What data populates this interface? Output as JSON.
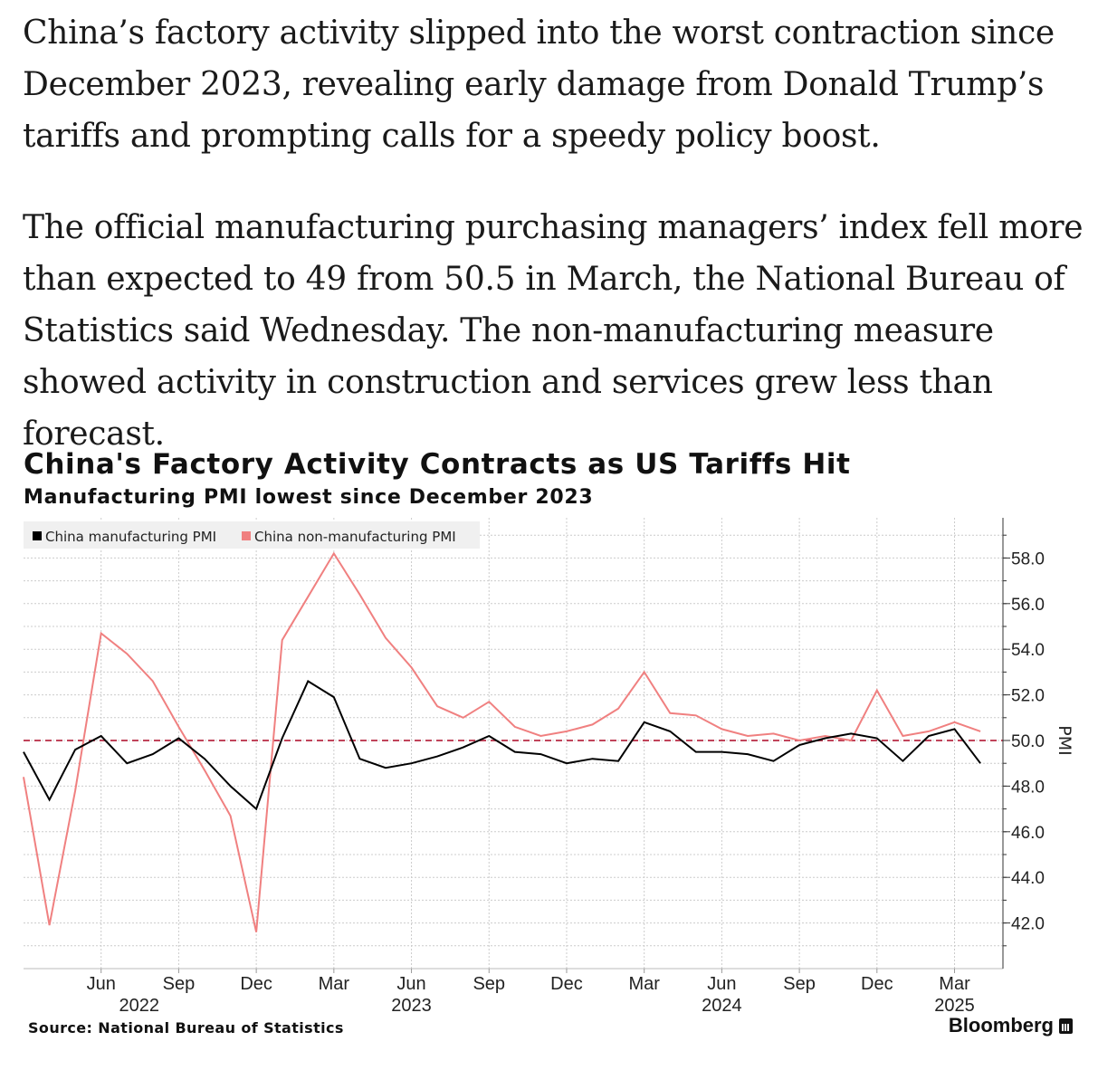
{
  "article": {
    "paragraphs": [
      "China’s factory activity slipped into the worst contraction since December 2023, revealing early damage from Donald Trump’s tariffs and prompting calls for a speedy policy boost.",
      "The official manufacturing purchasing managers’ index fell more than expected to 49 from 50.5 in March, the National Bureau of Statistics said Wednesday. The non-manufacturing measure showed activity in construction and services grew less than forecast."
    ]
  },
  "chart_data": {
    "type": "line",
    "title": "China's Factory Activity Contracts as US Tariffs Hit",
    "subtitle": "Manufacturing PMI lowest since December 2023",
    "ylabel": "PMI",
    "ylim": [
      40.0,
      59.6
    ],
    "yticks": [
      "58.0",
      "56.0",
      "54.0",
      "52.0",
      "50.0",
      "48.0",
      "46.0",
      "44.0",
      "42.0"
    ],
    "ytick_values": [
      58,
      56,
      54,
      52,
      50,
      48,
      46,
      44,
      42
    ],
    "reference_line": 50.0,
    "grid": true,
    "legend_position": "top-left",
    "x_start": "2022-03",
    "x": [
      "2022-03",
      "2022-04",
      "2022-05",
      "2022-06",
      "2022-07",
      "2022-08",
      "2022-09",
      "2022-10",
      "2022-11",
      "2022-12",
      "2023-01",
      "2023-02",
      "2023-03",
      "2023-04",
      "2023-05",
      "2023-06",
      "2023-07",
      "2023-08",
      "2023-09",
      "2023-10",
      "2023-11",
      "2023-12",
      "2024-01",
      "2024-02",
      "2024-03",
      "2024-04",
      "2024-05",
      "2024-06",
      "2024-07",
      "2024-08",
      "2024-09",
      "2024-10",
      "2024-11",
      "2024-12",
      "2025-01",
      "2025-02",
      "2025-03",
      "2025-04"
    ],
    "x_ticks": [
      {
        "month": "2022-06",
        "label": "Jun",
        "year": "2022"
      },
      {
        "month": "2022-09",
        "label": "Sep",
        "year": ""
      },
      {
        "month": "2022-12",
        "label": "Dec",
        "year": ""
      },
      {
        "month": "2023-03",
        "label": "Mar",
        "year": ""
      },
      {
        "month": "2023-06",
        "label": "Jun",
        "year": "2023"
      },
      {
        "month": "2023-09",
        "label": "Sep",
        "year": ""
      },
      {
        "month": "2023-12",
        "label": "Dec",
        "year": ""
      },
      {
        "month": "2024-03",
        "label": "Mar",
        "year": ""
      },
      {
        "month": "2024-06",
        "label": "Jun",
        "year": "2024"
      },
      {
        "month": "2024-09",
        "label": "Sep",
        "year": ""
      },
      {
        "month": "2024-12",
        "label": "Dec",
        "year": ""
      },
      {
        "month": "2025-03",
        "label": "Mar",
        "year": "2025"
      }
    ],
    "series": [
      {
        "name": "China manufacturing PMI",
        "color": "#000000",
        "values": [
          49.5,
          47.4,
          49.6,
          50.2,
          49.0,
          49.4,
          50.1,
          49.2,
          48.0,
          47.0,
          50.1,
          52.6,
          51.9,
          49.2,
          48.8,
          49.0,
          49.3,
          49.7,
          50.2,
          49.5,
          49.4,
          49.0,
          49.2,
          49.1,
          50.8,
          50.4,
          49.5,
          49.5,
          49.4,
          49.1,
          49.8,
          50.1,
          50.3,
          50.1,
          49.1,
          50.2,
          50.5,
          49.0
        ]
      },
      {
        "name": "China non-manufacturing PMI",
        "color": "#f08080",
        "values": [
          48.4,
          41.9,
          47.8,
          54.7,
          53.8,
          52.6,
          50.6,
          48.7,
          46.7,
          41.6,
          54.4,
          56.3,
          58.2,
          56.4,
          54.5,
          53.2,
          51.5,
          51.0,
          51.7,
          50.6,
          50.2,
          50.4,
          50.7,
          51.4,
          53.0,
          51.2,
          51.1,
          50.5,
          50.2,
          50.3,
          50.0,
          50.2,
          50.0,
          52.2,
          50.2,
          50.4,
          50.8,
          50.4
        ]
      }
    ]
  },
  "footer": {
    "source": "Source: National Bureau of Statistics",
    "brand": "Bloomberg"
  },
  "colors": {
    "reference_line": "#c0445a",
    "grid": "#cccccc",
    "legend_bg": "#f0f0f0"
  }
}
